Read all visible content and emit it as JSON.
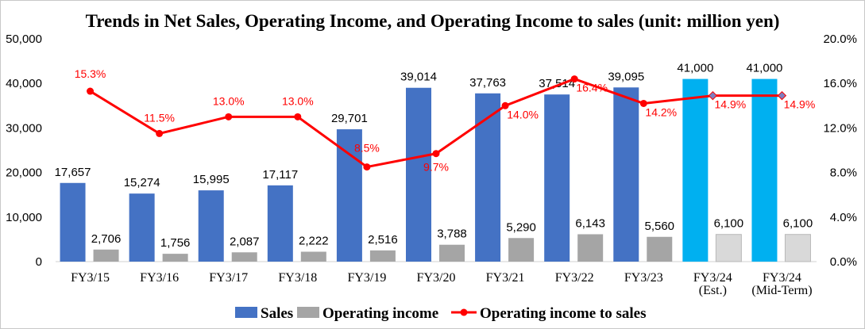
{
  "chart_data": {
    "type": "bar",
    "title": "Trends in Net Sales, Operating Income, and Operating Income to sales (unit: million yen)",
    "categories": [
      [
        "FY3/15"
      ],
      [
        "FY3/16"
      ],
      [
        "FY3/17"
      ],
      [
        "FY3/18"
      ],
      [
        "FY3/19"
      ],
      [
        "FY3/20"
      ],
      [
        "FY3/21"
      ],
      [
        "FY3/22"
      ],
      [
        "FY3/23"
      ],
      [
        "FY3/24",
        "(Est.)"
      ],
      [
        "FY3/24",
        "(Mid-Term)"
      ]
    ],
    "y_left": {
      "ylim": [
        0,
        50000
      ],
      "ticks": [
        "0",
        "10,000",
        "20,000",
        "30,000",
        "40,000",
        "50,000"
      ]
    },
    "y_right": {
      "ylim": [
        0,
        20
      ],
      "ticks": [
        "0.0%",
        "4.0%",
        "8.0%",
        "12.0%",
        "16.0%",
        "20.0%"
      ]
    },
    "series": [
      {
        "name": "Sales",
        "type": "bar",
        "axis": "left",
        "color": "#4472c4",
        "forecast_color": "#00b0f0",
        "values": [
          17657,
          15274,
          15995,
          17117,
          29701,
          39014,
          37763,
          37514,
          39095,
          41000,
          41000
        ],
        "labels": [
          "17,657",
          "15,274",
          "15,995",
          "17,117",
          "29,701",
          "39,014",
          "37,763",
          "37,514",
          "39,095",
          "41,000",
          "41,000"
        ]
      },
      {
        "name": "Operating income",
        "type": "bar",
        "axis": "left",
        "color": "#a5a5a5",
        "forecast_color": "#d9d9d9",
        "values": [
          2706,
          1756,
          2087,
          2222,
          2516,
          3788,
          5290,
          6143,
          5560,
          6100,
          6100
        ],
        "labels": [
          "2,706",
          "1,756",
          "2,087",
          "2,222",
          "2,516",
          "3,788",
          "5,290",
          "6,143",
          "5,560",
          "6,100",
          "6,100"
        ]
      },
      {
        "name": "Operating income to sales",
        "type": "line",
        "axis": "right",
        "color": "#ff0000",
        "forecast_marker_color": "#7f7fbf",
        "values": [
          15.3,
          11.5,
          13.0,
          13.0,
          8.5,
          9.7,
          14.0,
          16.4,
          14.2,
          14.9,
          14.9
        ],
        "labels": [
          "15.3%",
          "11.5%",
          "13.0%",
          "13.0%",
          "8.5%",
          "9.7%",
          "14.0%",
          "16.4%",
          "14.2%",
          "14.9%",
          "14.9%"
        ]
      }
    ],
    "forecast_from_index": 9,
    "grid": false,
    "legend_position": "bottom"
  }
}
